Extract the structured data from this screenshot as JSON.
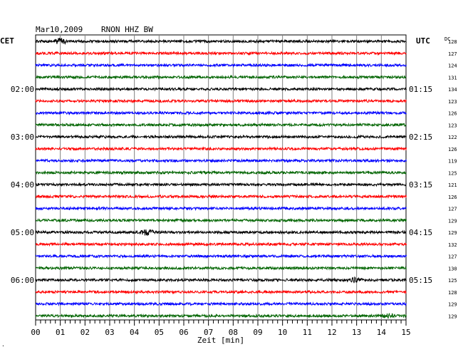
{
  "header": {
    "date": "Mar10,2009",
    "station": "RNON HHZ BW",
    "left_tz": "CET",
    "right_tz": "UTC",
    "dc_label": "DC",
    "corner_mark": "."
  },
  "chart_data": {
    "type": "line",
    "title": "Mar10,2009   RNON HHZ BW",
    "xlabel": "Zeit [min]",
    "x_ticks": [
      "00",
      "01",
      "02",
      "03",
      "04",
      "05",
      "06",
      "07",
      "08",
      "09",
      "10",
      "11",
      "12",
      "13",
      "14",
      "15"
    ],
    "xlim": [
      0,
      15
    ],
    "grid": true,
    "trace_colors": [
      "#000000",
      "#ff0000",
      "#0000ff",
      "#006400"
    ],
    "cet_labels": [
      "02:00",
      "03:00",
      "04:00",
      "05:00",
      "06:00"
    ],
    "utc_labels": [
      "01:15",
      "02:15",
      "03:15",
      "04:15",
      "05:15"
    ],
    "dc_values": [
      "128",
      "127",
      "124",
      "131",
      "134",
      "123",
      "126",
      "123",
      "122",
      "126",
      "119",
      "125",
      "121",
      "126",
      "127",
      "129",
      "129",
      "132",
      "127",
      "130",
      "125",
      "128",
      "129",
      "129"
    ],
    "events": [
      {
        "trace": 0,
        "minute": 1.0,
        "strength": "medium"
      },
      {
        "trace": 16,
        "minute": 4.5,
        "strength": "medium"
      },
      {
        "trace": 20,
        "minute": 12.9,
        "strength": "small"
      },
      {
        "trace": 23,
        "minute": 14.3,
        "strength": "small"
      }
    ]
  }
}
